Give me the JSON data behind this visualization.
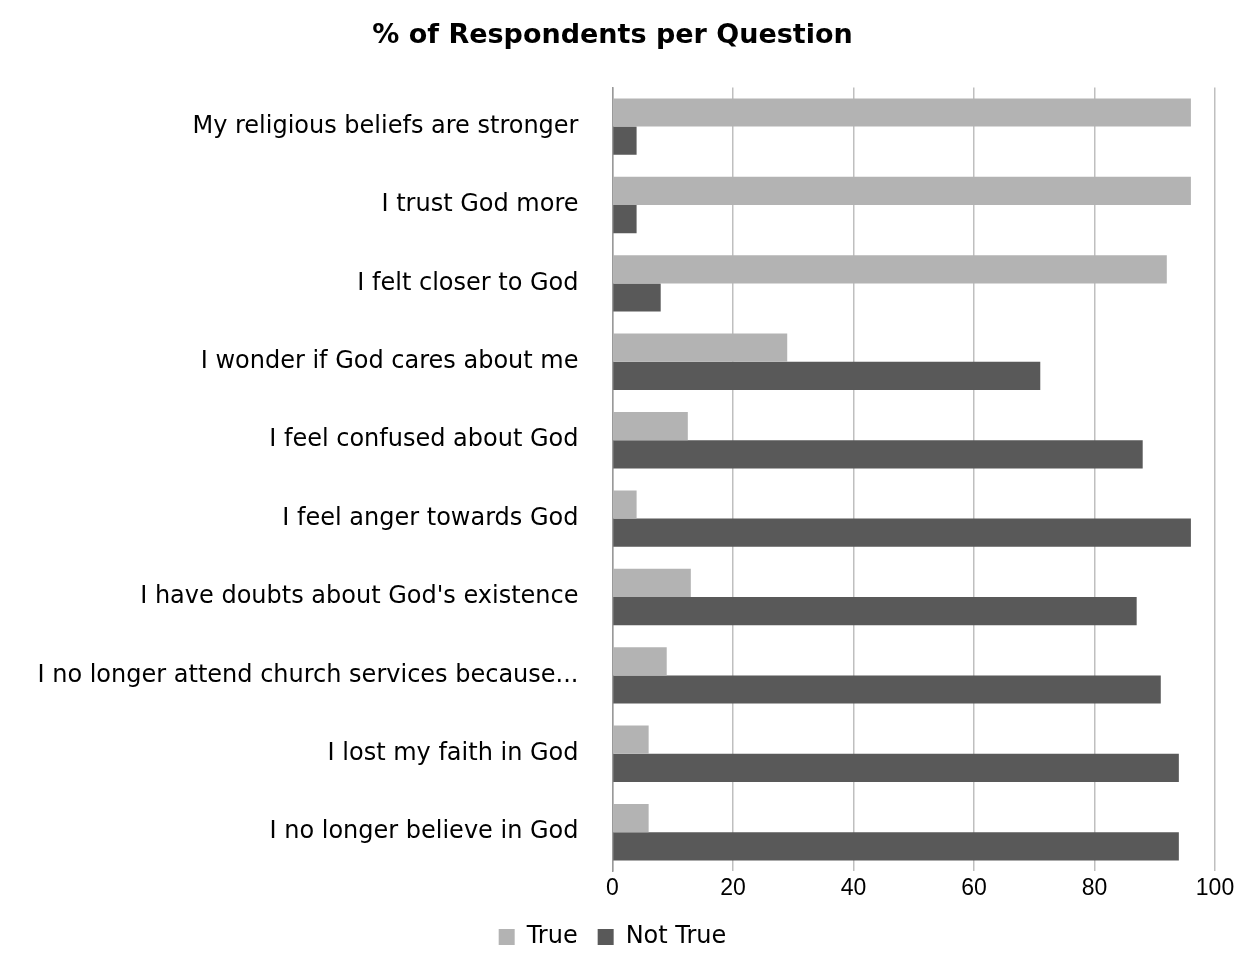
{
  "chart_data": {
    "type": "bar",
    "orientation": "horizontal",
    "title": "% of Respondents per Question",
    "categories": [
      "My religious beliefs are stronger",
      "I trust God more",
      "I felt closer to God",
      "I wonder if God cares about me",
      "I feel confused about God",
      "I feel anger towards God",
      "I have doubts about God's existence",
      "I no longer attend church services because...",
      "I lost my faith in God",
      "I no longer believe in God"
    ],
    "series": [
      {
        "name": "True",
        "color": "#b3b3b3",
        "values": [
          96,
          96,
          92,
          29,
          12.5,
          4,
          13,
          9,
          6,
          6
        ]
      },
      {
        "name": "Not True",
        "color": "#595959",
        "values": [
          4,
          4,
          8,
          71,
          88,
          96,
          87,
          91,
          94,
          94
        ]
      }
    ],
    "xlim": [
      0,
      100
    ],
    "xticks": [
      0,
      20,
      40,
      60,
      80,
      100
    ],
    "grid": "x",
    "legend": "bottom"
  }
}
